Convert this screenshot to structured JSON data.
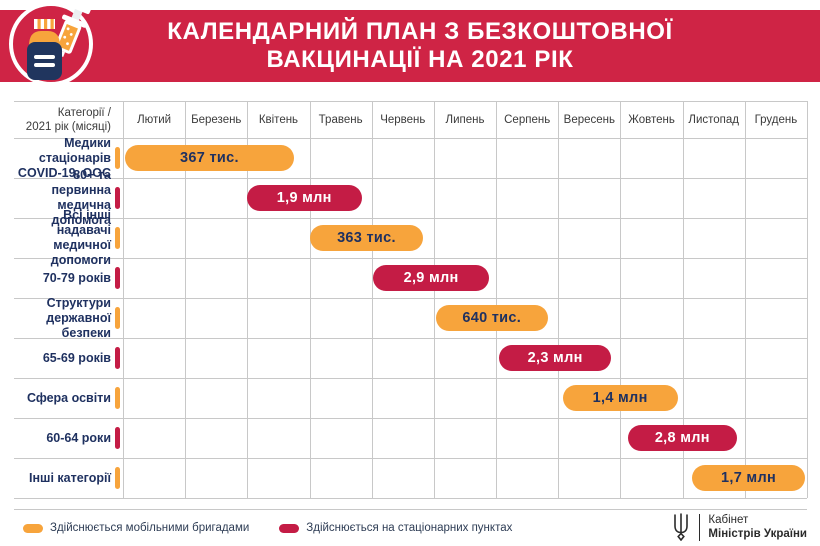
{
  "header": {
    "title_line1": "КАЛЕНДАРНИЙ ПЛАН З БЕЗКОШТОВНОЇ",
    "title_line2": "ВАКЦИНАЦІЇ НА 2021 РІК",
    "icon": "vaccine-bottle-and-syringe-icon"
  },
  "colors": {
    "banner_red": "#cf2445",
    "bar_crimson": "#c41c45",
    "bar_orange": "#f7a43c",
    "label_navy": "#1f3160",
    "grid_gray": "#c8c8c8",
    "month_text": "#3b3b3b",
    "footer_text": "#2b2b2b"
  },
  "table": {
    "corner_line1": "Категорії /",
    "corner_line2": "2021 рік (місяці)"
  },
  "chart_data": {
    "type": "bar",
    "variant": "gantt-timeline",
    "title": "КАЛЕНДАРНИЙ ПЛАН З БЕЗКОШТОВНОЇ ВАКЦИНАЦІЇ НА 2021 РІК",
    "x_axis_label": "2021 рік (місяці)",
    "y_axis_label": "Категорії",
    "months": [
      "Лютий",
      "Березень",
      "Квітень",
      "Травень",
      "Червень",
      "Липень",
      "Серпень",
      "Вересень",
      "Жовтень",
      "Листопад",
      "Грудень"
    ],
    "grid": true,
    "legend_position": "bottom-left",
    "rows": [
      {
        "label_lines": [
          "Медики стаціонарів",
          "COVID-19, ООС"
        ],
        "category": "Медики стаціонарів COVID-19, ООС",
        "value": "367 тис.",
        "color": "orange",
        "start": "Лютий",
        "end": "Квітень",
        "col_start": 0.03,
        "col_end": 2.75
      },
      {
        "label_lines": [
          "80+ та первинна",
          "медична допомога"
        ],
        "category": "80+ та первинна медична допомога",
        "value": "1,9 млн",
        "color": "crimson",
        "start": "Квітень",
        "end": "Травень",
        "col_start": 1.99,
        "col_end": 3.84
      },
      {
        "label_lines": [
          "Всі інші надавачі",
          "медичної допомоги"
        ],
        "category": "Всі інші надавачі медичної допомоги",
        "value": "363 тис.",
        "color": "orange",
        "start": "Травень",
        "end": "Червень",
        "col_start": 3.01,
        "col_end": 4.82
      },
      {
        "label_lines": [
          "70-79 років"
        ],
        "category": "70-79 років",
        "value": "2,9 млн",
        "color": "crimson",
        "start": "Червень",
        "end": "Липень",
        "col_start": 4.02,
        "col_end": 5.89
      },
      {
        "label_lines": [
          "Структури",
          "державної безпеки"
        ],
        "category": "Структури державної безпеки",
        "value": "640 тис.",
        "color": "orange",
        "start": "Липень",
        "end": "Серпень",
        "col_start": 5.03,
        "col_end": 6.83
      },
      {
        "label_lines": [
          "65-69 років"
        ],
        "category": "65-69 років",
        "value": "2,3 млн",
        "color": "crimson",
        "start": "Серпень",
        "end": "Вересень",
        "col_start": 6.05,
        "col_end": 7.85
      },
      {
        "label_lines": [
          "Сфера освіти"
        ],
        "category": "Сфера освіти",
        "value": "1,4 млн",
        "color": "orange",
        "start": "Вересень",
        "end": "Жовтень",
        "col_start": 7.07,
        "col_end": 8.92
      },
      {
        "label_lines": [
          "60-64 роки"
        ],
        "category": "60-64 роки",
        "value": "2,8 млн",
        "color": "crimson",
        "start": "Жовтень",
        "end": "Листопад",
        "col_start": 8.12,
        "col_end": 9.87
      },
      {
        "label_lines": [
          "Інші категорії"
        ],
        "category": "Інші категорії",
        "value": "1,7 млн",
        "color": "orange",
        "start": "Листопад",
        "end": "Грудень",
        "col_start": 9.15,
        "col_end": 10.97
      }
    ]
  },
  "legend": [
    {
      "label": "Здійснюється мобільними бригадами",
      "color": "orange"
    },
    {
      "label": "Здійснюється на стаціонарних пунктах",
      "color": "crimson"
    }
  ],
  "footer_logo": {
    "line1": "Кабінет",
    "line2": "Міністрів України",
    "icon": "tryzub-emblem-icon"
  }
}
